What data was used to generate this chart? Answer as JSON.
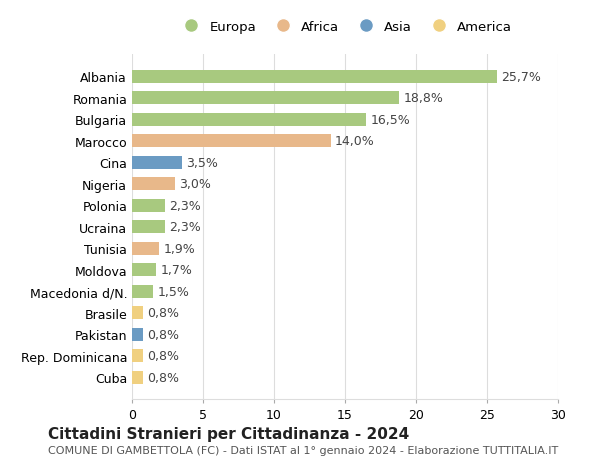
{
  "categories": [
    "Albania",
    "Romania",
    "Bulgaria",
    "Marocco",
    "Cina",
    "Nigeria",
    "Polonia",
    "Ucraina",
    "Tunisia",
    "Moldova",
    "Macedonia d/N.",
    "Brasile",
    "Pakistan",
    "Rep. Dominicana",
    "Cuba"
  ],
  "values": [
    25.7,
    18.8,
    16.5,
    14.0,
    3.5,
    3.0,
    2.3,
    2.3,
    1.9,
    1.7,
    1.5,
    0.8,
    0.8,
    0.8,
    0.8
  ],
  "labels": [
    "25,7%",
    "18,8%",
    "16,5%",
    "14,0%",
    "3,5%",
    "3,0%",
    "2,3%",
    "2,3%",
    "1,9%",
    "1,7%",
    "1,5%",
    "0,8%",
    "0,8%",
    "0,8%",
    "0,8%"
  ],
  "colors": [
    "#a8c97f",
    "#a8c97f",
    "#a8c97f",
    "#e8b88a",
    "#6b9bc3",
    "#e8b88a",
    "#a8c97f",
    "#a8c97f",
    "#e8b88a",
    "#a8c97f",
    "#a8c97f",
    "#f0d080",
    "#6b9bc3",
    "#f0d080",
    "#f0d080"
  ],
  "legend_labels": [
    "Europa",
    "Africa",
    "Asia",
    "America"
  ],
  "legend_colors": [
    "#a8c97f",
    "#e8b88a",
    "#6b9bc3",
    "#f0d080"
  ],
  "title": "Cittadini Stranieri per Cittadinanza - 2024",
  "subtitle": "COMUNE DI GAMBETTOLA (FC) - Dati ISTAT al 1° gennaio 2024 - Elaborazione TUTTITALIA.IT",
  "xlim": [
    0,
    30
  ],
  "xticks": [
    0,
    5,
    10,
    15,
    20,
    25,
    30
  ],
  "bg_color": "#ffffff",
  "grid_color": "#dddddd",
  "bar_height": 0.6,
  "label_fontsize": 9,
  "title_fontsize": 11,
  "subtitle_fontsize": 8,
  "tick_fontsize": 9
}
